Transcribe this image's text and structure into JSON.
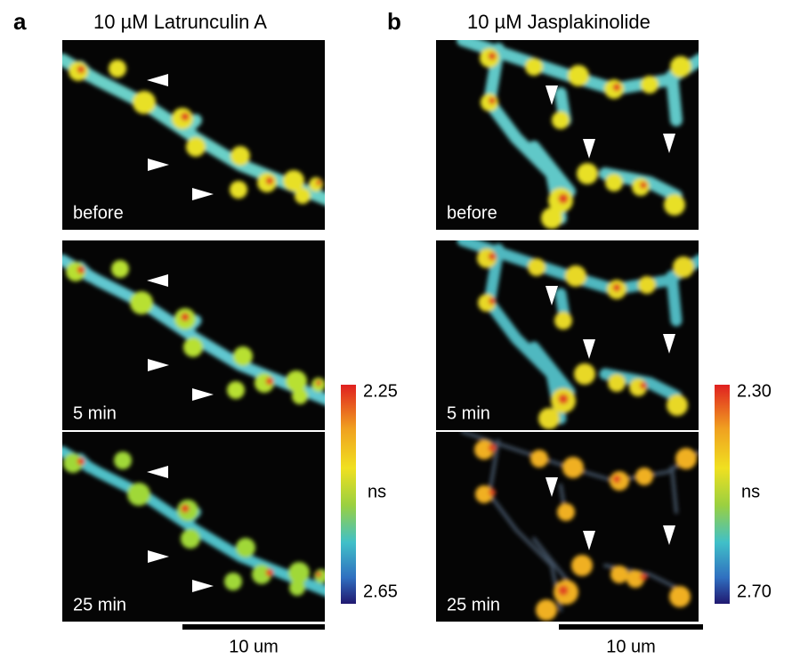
{
  "panels": [
    {
      "label": "a",
      "title": "10 µM Latrunculin A",
      "frames": [
        "before",
        "5 min",
        "25 min"
      ],
      "colorbar": {
        "top": "2.25",
        "middle": "ns",
        "bottom": "2.65"
      },
      "scale_bar": "10 um"
    },
    {
      "label": "b",
      "title": "10 µM Jasplakinolide",
      "frames": [
        "before",
        "5 min",
        "25 min"
      ],
      "colorbar": {
        "top": "2.30",
        "middle": "ns",
        "bottom": "2.70"
      },
      "scale_bar": "10 um"
    }
  ]
}
